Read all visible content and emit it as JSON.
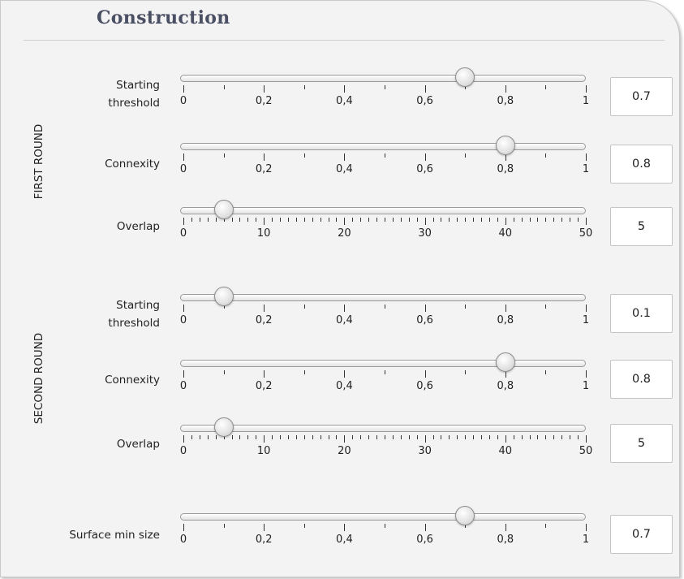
{
  "section_title": "Construction",
  "groups": [
    {
      "label": "FIRST ROUND"
    },
    {
      "label": "SECOND ROUND"
    }
  ],
  "sliders": [
    {
      "label_lines": [
        "Starting",
        "threshold"
      ],
      "value": "0.7",
      "position": 0.7,
      "tick_labels": [
        "0",
        "0,2",
        "0,4",
        "0,6",
        "0,8",
        "1"
      ]
    },
    {
      "label_lines": [
        "Connexity"
      ],
      "value": "0.8",
      "position": 0.8,
      "tick_labels": [
        "0",
        "0,2",
        "0,4",
        "0,6",
        "0,8",
        "1"
      ]
    },
    {
      "label_lines": [
        "Overlap"
      ],
      "value": "5",
      "position": 5,
      "tick_labels": [
        "0",
        "10",
        "20",
        "30",
        "40",
        "50"
      ]
    },
    {
      "label_lines": [
        "Starting",
        "threshold"
      ],
      "value": "0.1",
      "position": 0.1,
      "tick_labels": [
        "0",
        "0,2",
        "0,4",
        "0,6",
        "0,8",
        "1"
      ]
    },
    {
      "label_lines": [
        "Connexity"
      ],
      "value": "0.8",
      "position": 0.8,
      "tick_labels": [
        "0",
        "0,2",
        "0,4",
        "0,6",
        "0,8",
        "1"
      ]
    },
    {
      "label_lines": [
        "Overlap"
      ],
      "value": "5",
      "position": 5,
      "tick_labels": [
        "0",
        "10",
        "20",
        "30",
        "40",
        "50"
      ]
    },
    {
      "label_lines": [
        "Surface min size"
      ],
      "value": "0.7",
      "position": 0.7,
      "tick_labels": [
        "0",
        "0,2",
        "0,4",
        "0,6",
        "0,8",
        "1"
      ]
    }
  ]
}
